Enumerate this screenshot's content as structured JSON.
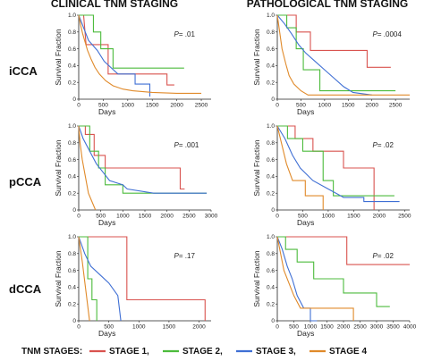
{
  "column_titles": [
    "CLINICAL  TNM STAGING",
    "PATHOLOGICAL  TNM STAGING"
  ],
  "row_labels": [
    "iCCA",
    "pCCA",
    "dCCA"
  ],
  "legend": {
    "title": "TNM STAGES:",
    "items": [
      {
        "label": "STAGE 1,",
        "color": "#d9534f"
      },
      {
        "label": "STAGE 2,",
        "color": "#4cbb3c"
      },
      {
        "label": "STAGE 3,",
        "color": "#3f6fd4"
      },
      {
        "label": "STAGE 4",
        "color": "#e08a2a"
      }
    ]
  },
  "chart_data": [
    {
      "type": "line",
      "xlabel": "Days",
      "ylabel": "Survival  Fraction",
      "xlim": [
        0,
        2700
      ],
      "xticks": [
        0,
        500,
        1000,
        1500,
        2000,
        2500
      ],
      "ylim": [
        0,
        1
      ],
      "yticks": [
        0,
        0.2,
        0.4,
        0.6,
        0.8,
        1.0
      ],
      "annotation": {
        "italic": "P",
        "text": "= .01"
      },
      "series": [
        {
          "color": "#d9534f",
          "values": [
            [
              0,
              1
            ],
            [
              100,
              1
            ],
            [
              150,
              0.65
            ],
            [
              600,
              0.65
            ],
            [
              600,
              0.3
            ],
            [
              1800,
              0.3
            ],
            [
              1800,
              0.17
            ],
            [
              1950,
              0.17
            ]
          ]
        },
        {
          "color": "#4cbb3c",
          "values": [
            [
              0,
              1
            ],
            [
              300,
              1
            ],
            [
              300,
              0.8
            ],
            [
              450,
              0.8
            ],
            [
              450,
              0.6
            ],
            [
              700,
              0.6
            ],
            [
              700,
              0.37
            ],
            [
              2150,
              0.37
            ]
          ]
        },
        {
          "color": "#3f6fd4",
          "values": [
            [
              0,
              1
            ],
            [
              100,
              0.85
            ],
            [
              200,
              0.7
            ],
            [
              380,
              0.58
            ],
            [
              520,
              0.45
            ],
            [
              650,
              0.38
            ],
            [
              800,
              0.3
            ],
            [
              1150,
              0.3
            ],
            [
              1150,
              0.18
            ],
            [
              1450,
              0.18
            ],
            [
              1450,
              0.03
            ]
          ]
        },
        {
          "color": "#e08a2a",
          "values": [
            [
              0,
              1
            ],
            [
              40,
              0.88
            ],
            [
              80,
              0.78
            ],
            [
              130,
              0.68
            ],
            [
              180,
              0.58
            ],
            [
              250,
              0.48
            ],
            [
              330,
              0.38
            ],
            [
              420,
              0.3
            ],
            [
              550,
              0.22
            ],
            [
              700,
              0.16
            ],
            [
              900,
              0.12
            ],
            [
              1100,
              0.1
            ],
            [
              1500,
              0.08
            ],
            [
              2000,
              0.07
            ],
            [
              2500,
              0.07
            ]
          ]
        }
      ]
    },
    {
      "type": "line",
      "xlabel": "Days",
      "ylabel": "Survival  Fraction",
      "xlim": [
        0,
        2800
      ],
      "xticks": [
        0,
        500,
        1000,
        1500,
        2000,
        2500
      ],
      "ylim": [
        0,
        1
      ],
      "yticks": [
        0,
        0.2,
        0.4,
        0.6,
        0.8,
        1.0
      ],
      "annotation": {
        "italic": "P",
        "text": "= .0004"
      },
      "series": [
        {
          "color": "#d9534f",
          "values": [
            [
              0,
              1
            ],
            [
              400,
              1
            ],
            [
              400,
              0.8
            ],
            [
              700,
              0.8
            ],
            [
              700,
              0.58
            ],
            [
              1900,
              0.58
            ],
            [
              1900,
              0.38
            ],
            [
              2400,
              0.38
            ]
          ]
        },
        {
          "color": "#4cbb3c",
          "values": [
            [
              0,
              1
            ],
            [
              200,
              1
            ],
            [
              200,
              0.85
            ],
            [
              400,
              0.85
            ],
            [
              400,
              0.6
            ],
            [
              550,
              0.6
            ],
            [
              550,
              0.35
            ],
            [
              900,
              0.35
            ],
            [
              900,
              0.1
            ],
            [
              2500,
              0.1
            ]
          ]
        },
        {
          "color": "#3f6fd4",
          "values": [
            [
              0,
              1
            ],
            [
              150,
              0.9
            ],
            [
              300,
              0.78
            ],
            [
              450,
              0.65
            ],
            [
              600,
              0.55
            ],
            [
              800,
              0.45
            ],
            [
              1000,
              0.35
            ],
            [
              1200,
              0.25
            ],
            [
              1400,
              0.15
            ],
            [
              1600,
              0.08
            ],
            [
              2000,
              0.05
            ]
          ]
        },
        {
          "color": "#e08a2a",
          "values": [
            [
              0,
              1
            ],
            [
              50,
              0.8
            ],
            [
              100,
              0.6
            ],
            [
              180,
              0.42
            ],
            [
              250,
              0.28
            ],
            [
              350,
              0.18
            ],
            [
              500,
              0.1
            ],
            [
              650,
              0.05
            ],
            [
              2800,
              0.05
            ]
          ]
        }
      ]
    },
    {
      "type": "line",
      "xlabel": "Days",
      "ylabel": "Survival  Fraction",
      "xlim": [
        0,
        3000
      ],
      "xticks": [
        0,
        500,
        1000,
        1500,
        2000,
        2500,
        3000
      ],
      "ylim": [
        0,
        1
      ],
      "yticks": [
        0,
        0.2,
        0.4,
        0.6,
        0.8,
        1.0
      ],
      "annotation": {
        "italic": "P",
        "text": "= .001"
      },
      "series": [
        {
          "color": "#d9534f",
          "values": [
            [
              0,
              1
            ],
            [
              150,
              1
            ],
            [
              150,
              0.9
            ],
            [
              350,
              0.9
            ],
            [
              350,
              0.65
            ],
            [
              600,
              0.65
            ],
            [
              600,
              0.5
            ],
            [
              2300,
              0.5
            ],
            [
              2300,
              0.25
            ],
            [
              2400,
              0.25
            ]
          ]
        },
        {
          "color": "#4cbb3c",
          "values": [
            [
              0,
              1
            ],
            [
              250,
              1
            ],
            [
              250,
              0.7
            ],
            [
              450,
              0.7
            ],
            [
              450,
              0.5
            ],
            [
              600,
              0.5
            ],
            [
              600,
              0.3
            ],
            [
              1000,
              0.3
            ],
            [
              1000,
              0.2
            ],
            [
              2900,
              0.2
            ]
          ]
        },
        {
          "color": "#3f6fd4",
          "values": [
            [
              0,
              1
            ],
            [
              100,
              0.85
            ],
            [
              250,
              0.7
            ],
            [
              400,
              0.55
            ],
            [
              550,
              0.45
            ],
            [
              700,
              0.35
            ],
            [
              1000,
              0.3
            ],
            [
              1100,
              0.25
            ],
            [
              1700,
              0.2
            ],
            [
              2900,
              0.2
            ]
          ]
        },
        {
          "color": "#e08a2a",
          "values": [
            [
              0,
              1
            ],
            [
              30,
              0.8
            ],
            [
              80,
              0.6
            ],
            [
              150,
              0.4
            ],
            [
              220,
              0.2
            ],
            [
              300,
              0.1
            ],
            [
              380,
              0
            ]
          ]
        }
      ]
    },
    {
      "type": "line",
      "xlabel": "Days",
      "ylabel": "Survival  Fraction",
      "xlim": [
        0,
        2600
      ],
      "xticks": [
        0,
        500,
        1000,
        1500,
        2000,
        2500
      ],
      "ylim": [
        0,
        1
      ],
      "yticks": [
        0,
        0.2,
        0.4,
        0.6,
        0.8,
        1.0
      ],
      "annotation": {
        "italic": "P",
        "text": "= .02"
      },
      "series": [
        {
          "color": "#d9534f",
          "values": [
            [
              0,
              1
            ],
            [
              350,
              1
            ],
            [
              350,
              0.85
            ],
            [
              700,
              0.85
            ],
            [
              700,
              0.7
            ],
            [
              1300,
              0.7
            ],
            [
              1300,
              0.5
            ],
            [
              1900,
              0.5
            ],
            [
              1900,
              0
            ]
          ]
        },
        {
          "color": "#4cbb3c",
          "values": [
            [
              0,
              1
            ],
            [
              200,
              1
            ],
            [
              200,
              0.85
            ],
            [
              500,
              0.85
            ],
            [
              500,
              0.7
            ],
            [
              900,
              0.7
            ],
            [
              900,
              0.35
            ],
            [
              1100,
              0.35
            ],
            [
              1100,
              0.17
            ],
            [
              2300,
              0.17
            ]
          ]
        },
        {
          "color": "#3f6fd4",
          "values": [
            [
              0,
              1
            ],
            [
              150,
              0.85
            ],
            [
              300,
              0.65
            ],
            [
              450,
              0.5
            ],
            [
              700,
              0.35
            ],
            [
              1000,
              0.25
            ],
            [
              1300,
              0.15
            ],
            [
              1700,
              0.15
            ],
            [
              1700,
              0.1
            ],
            [
              2400,
              0.1
            ]
          ]
        },
        {
          "color": "#e08a2a",
          "values": [
            [
              0,
              1
            ],
            [
              80,
              0.8
            ],
            [
              180,
              0.55
            ],
            [
              300,
              0.35
            ],
            [
              550,
              0.35
            ],
            [
              550,
              0.17
            ],
            [
              900,
              0.17
            ],
            [
              900,
              0
            ]
          ]
        }
      ]
    },
    {
      "type": "line",
      "xlabel": "Days",
      "ylabel": "Survival  Fraction",
      "xlim": [
        0,
        2200
      ],
      "xticks": [
        0,
        500,
        1000,
        1500,
        2000
      ],
      "ylim": [
        0,
        1
      ],
      "yticks": [
        0,
        0.2,
        0.4,
        0.6,
        0.8,
        1.0
      ],
      "annotation": {
        "italic": "P",
        "text": "= .17"
      },
      "series": [
        {
          "color": "#d9534f",
          "values": [
            [
              0,
              1
            ],
            [
              800,
              1
            ],
            [
              800,
              0.25
            ],
            [
              2100,
              0.25
            ],
            [
              2100,
              0
            ]
          ]
        },
        {
          "color": "#4cbb3c",
          "values": [
            [
              0,
              1
            ],
            [
              150,
              1
            ],
            [
              150,
              0.5
            ],
            [
              220,
              0.5
            ],
            [
              220,
              0.25
            ],
            [
              300,
              0.25
            ],
            [
              300,
              0
            ]
          ]
        },
        {
          "color": "#3f6fd4",
          "values": [
            [
              0,
              1
            ],
            [
              100,
              0.8
            ],
            [
              200,
              0.65
            ],
            [
              350,
              0.55
            ],
            [
              500,
              0.45
            ],
            [
              650,
              0.3
            ],
            [
              700,
              0
            ]
          ]
        },
        {
          "color": "#e08a2a",
          "values": [
            [
              0,
              1
            ],
            [
              60,
              0.7
            ],
            [
              120,
              0.35
            ],
            [
              180,
              0
            ]
          ]
        }
      ]
    },
    {
      "type": "line",
      "xlabel": "Days",
      "ylabel": "Survival  Fraction",
      "xlim": [
        0,
        4000
      ],
      "xticks": [
        0,
        500,
        1000,
        1500,
        2000,
        2500,
        3000,
        3500,
        4000
      ],
      "ylim": [
        0,
        1
      ],
      "yticks": [
        0,
        0.2,
        0.4,
        0.6,
        0.8,
        1.0
      ],
      "annotation": {
        "italic": "P",
        "text": "= .02"
      },
      "series": [
        {
          "color": "#d9534f",
          "values": [
            [
              0,
              1
            ],
            [
              2100,
              1
            ],
            [
              2100,
              0.67
            ],
            [
              4000,
              0.67
            ]
          ]
        },
        {
          "color": "#4cbb3c",
          "values": [
            [
              0,
              1
            ],
            [
              250,
              1
            ],
            [
              250,
              0.85
            ],
            [
              600,
              0.85
            ],
            [
              600,
              0.7
            ],
            [
              1100,
              0.7
            ],
            [
              1100,
              0.5
            ],
            [
              2000,
              0.5
            ],
            [
              2000,
              0.33
            ],
            [
              3000,
              0.33
            ],
            [
              3000,
              0.17
            ],
            [
              3400,
              0.17
            ]
          ]
        },
        {
          "color": "#3f6fd4",
          "values": [
            [
              0,
              1
            ],
            [
              150,
              0.85
            ],
            [
              300,
              0.65
            ],
            [
              450,
              0.5
            ],
            [
              600,
              0.3
            ],
            [
              800,
              0.15
            ],
            [
              1000,
              0.15
            ],
            [
              1000,
              0
            ],
            [
              1200,
              0
            ]
          ]
        },
        {
          "color": "#e08a2a",
          "values": [
            [
              0,
              1
            ],
            [
              100,
              0.8
            ],
            [
              200,
              0.6
            ],
            [
              350,
              0.45
            ],
            [
              500,
              0.3
            ],
            [
              700,
              0.15
            ],
            [
              2300,
              0.15
            ],
            [
              2300,
              0
            ]
          ]
        }
      ]
    }
  ]
}
